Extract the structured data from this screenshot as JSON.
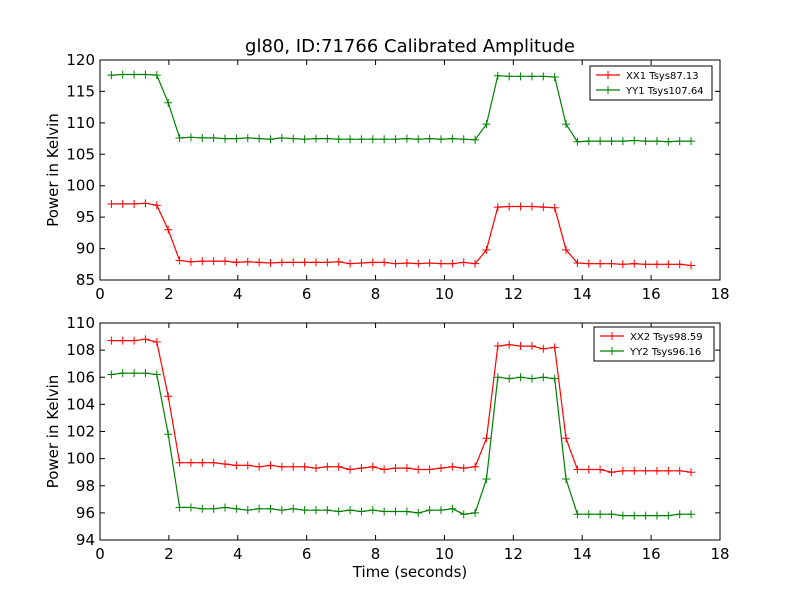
{
  "figure": {
    "title": "gl80, ID:71766 Calibrated Amplitude",
    "colors": {
      "red": "#ff0000",
      "green": "#008000"
    }
  },
  "chart_data": [
    {
      "type": "line",
      "xlabel": "",
      "ylabel": "Power in Kelvin",
      "xlim": [
        0,
        18
      ],
      "ylim": [
        85,
        120
      ],
      "xticks": [
        0,
        2,
        4,
        6,
        8,
        10,
        12,
        14,
        16,
        18
      ],
      "yticks": [
        85,
        90,
        95,
        100,
        105,
        110,
        115,
        120
      ],
      "grid": false,
      "legend": "top-right",
      "x": [
        0.33,
        0.66,
        0.99,
        1.32,
        1.65,
        1.98,
        2.31,
        2.64,
        2.97,
        3.3,
        3.63,
        3.96,
        4.29,
        4.62,
        4.95,
        5.28,
        5.61,
        5.94,
        6.27,
        6.6,
        6.93,
        7.26,
        7.59,
        7.92,
        8.25,
        8.58,
        8.91,
        9.24,
        9.57,
        9.9,
        10.23,
        10.56,
        10.89,
        11.22,
        11.55,
        11.88,
        12.21,
        12.54,
        12.87,
        13.2,
        13.53,
        13.86,
        14.19,
        14.52,
        14.85,
        15.18,
        15.51,
        15.84,
        16.17,
        16.5,
        16.83,
        17.16
      ],
      "series": [
        {
          "name": "XX1 Tsys87.13",
          "color": "#ff0000",
          "values": [
            97.1,
            97.1,
            97.1,
            97.2,
            96.9,
            93.0,
            88.1,
            87.9,
            88.0,
            88.0,
            88.0,
            87.8,
            87.9,
            87.8,
            87.7,
            87.8,
            87.8,
            87.8,
            87.8,
            87.8,
            87.9,
            87.6,
            87.7,
            87.8,
            87.8,
            87.6,
            87.7,
            87.6,
            87.7,
            87.6,
            87.6,
            87.8,
            87.6,
            89.8,
            96.6,
            96.7,
            96.7,
            96.7,
            96.6,
            96.5,
            89.8,
            87.7,
            87.6,
            87.6,
            87.6,
            87.5,
            87.6,
            87.5,
            87.5,
            87.5,
            87.5,
            87.3
          ]
        },
        {
          "name": "YY1 Tsys107.64",
          "color": "#008000",
          "values": [
            117.6,
            117.7,
            117.7,
            117.7,
            117.6,
            113.2,
            107.6,
            107.7,
            107.6,
            107.6,
            107.5,
            107.5,
            107.6,
            107.5,
            107.4,
            107.6,
            107.5,
            107.4,
            107.5,
            107.5,
            107.4,
            107.4,
            107.4,
            107.4,
            107.4,
            107.4,
            107.5,
            107.4,
            107.5,
            107.4,
            107.5,
            107.4,
            107.3,
            109.8,
            117.5,
            117.4,
            117.4,
            117.4,
            117.4,
            117.3,
            109.8,
            107.0,
            107.1,
            107.1,
            107.1,
            107.1,
            107.2,
            107.1,
            107.1,
            107.0,
            107.1,
            107.1
          ]
        }
      ]
    },
    {
      "type": "line",
      "xlabel": "Time (seconds)",
      "ylabel": "Power in Kelvin",
      "xlim": [
        0,
        18
      ],
      "ylim": [
        94,
        110
      ],
      "xticks": [
        0,
        2,
        4,
        6,
        8,
        10,
        12,
        14,
        16,
        18
      ],
      "yticks": [
        94,
        96,
        98,
        100,
        102,
        104,
        106,
        108,
        110
      ],
      "grid": false,
      "legend": "top-right",
      "x": [
        0.33,
        0.66,
        0.99,
        1.32,
        1.65,
        1.98,
        2.31,
        2.64,
        2.97,
        3.3,
        3.63,
        3.96,
        4.29,
        4.62,
        4.95,
        5.28,
        5.61,
        5.94,
        6.27,
        6.6,
        6.93,
        7.26,
        7.59,
        7.92,
        8.25,
        8.58,
        8.91,
        9.24,
        9.57,
        9.9,
        10.23,
        10.56,
        10.89,
        11.22,
        11.55,
        11.88,
        12.21,
        12.54,
        12.87,
        13.2,
        13.53,
        13.86,
        14.19,
        14.52,
        14.85,
        15.18,
        15.51,
        15.84,
        16.17,
        16.5,
        16.83,
        17.16
      ],
      "series": [
        {
          "name": "XX2 Tsys98.59",
          "color": "#ff0000",
          "values": [
            108.7,
            108.7,
            108.7,
            108.8,
            108.6,
            104.6,
            99.7,
            99.7,
            99.7,
            99.7,
            99.6,
            99.5,
            99.5,
            99.4,
            99.5,
            99.4,
            99.4,
            99.4,
            99.3,
            99.4,
            99.4,
            99.2,
            99.3,
            99.4,
            99.2,
            99.3,
            99.3,
            99.2,
            99.2,
            99.3,
            99.4,
            99.3,
            99.4,
            101.5,
            108.3,
            108.4,
            108.3,
            108.3,
            108.1,
            108.2,
            101.5,
            99.2,
            99.2,
            99.2,
            99.0,
            99.1,
            99.1,
            99.1,
            99.1,
            99.1,
            99.1,
            99.0
          ]
        },
        {
          "name": "YY2 Tsys96.16",
          "color": "#008000",
          "values": [
            106.2,
            106.3,
            106.3,
            106.3,
            106.2,
            101.8,
            96.4,
            96.4,
            96.3,
            96.3,
            96.4,
            96.3,
            96.2,
            96.3,
            96.3,
            96.2,
            96.3,
            96.2,
            96.2,
            96.2,
            96.1,
            96.2,
            96.1,
            96.2,
            96.1,
            96.1,
            96.1,
            96.0,
            96.2,
            96.2,
            96.3,
            95.9,
            96.0,
            98.5,
            106.0,
            105.9,
            106.0,
            105.9,
            106.0,
            105.9,
            98.5,
            95.9,
            95.9,
            95.9,
            95.9,
            95.8,
            95.8,
            95.8,
            95.8,
            95.8,
            95.9,
            95.9
          ]
        }
      ]
    }
  ]
}
